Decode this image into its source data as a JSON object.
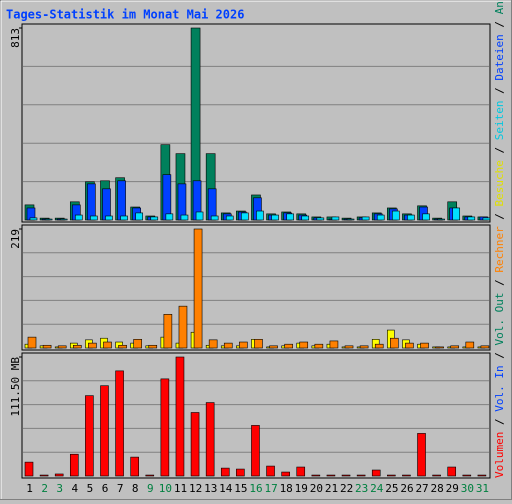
{
  "chart_data": {
    "type": "bar",
    "title": "Tages-Statistik im Monat Mai 2026",
    "categories": [
      "1",
      "2",
      "3",
      "4",
      "5",
      "6",
      "7",
      "8",
      "9",
      "10",
      "11",
      "12",
      "13",
      "14",
      "15",
      "16",
      "17",
      "18",
      "19",
      "20",
      "21",
      "22",
      "23",
      "24",
      "25",
      "26",
      "27",
      "28",
      "29",
      "30",
      "31"
    ],
    "category_colors": [
      "#000000",
      "#008040",
      "#008040",
      "#000000",
      "#000000",
      "#000000",
      "#000000",
      "#000000",
      "#008040",
      "#008040",
      "#000000",
      "#000000",
      "#000000",
      "#000000",
      "#000000",
      "#008040",
      "#008040",
      "#000000",
      "#000000",
      "#000000",
      "#000000",
      "#000000",
      "#008040",
      "#008040",
      "#000000",
      "#000000",
      "#000000",
      "#000000",
      "#000000",
      "#008040",
      "#008040"
    ],
    "legend_separator": " / ",
    "legend": [
      {
        "name": "Volumen",
        "color": "#ff0000"
      },
      {
        "name": "Vol. In",
        "color": "#0040ff"
      },
      {
        "name": "Vol. Out",
        "color": "#00805c"
      },
      {
        "name": "Rechner",
        "color": "#ff8000"
      },
      {
        "name": "Besuche",
        "color": "#e0e000"
      },
      {
        "name": "Seiten",
        "color": "#00c8e0"
      },
      {
        "name": "Dateien",
        "color": "#0040ff"
      },
      {
        "name": "Anfragen",
        "color": "#00805c"
      }
    ],
    "panels": [
      {
        "ylim": [
          0,
          813
        ],
        "yticks": [
          813
        ],
        "series": [
          {
            "color": "#00805c",
            "values": [
              64,
              8,
              8,
              77,
              162,
              166,
              179,
              55,
              17,
              319,
              281,
              813,
              281,
              30,
              38,
              106,
              26,
              34,
              26,
              13,
              13,
              8,
              13,
              30,
              51,
              26,
              60,
              8,
              77,
              17,
              13
            ]
          },
          {
            "color": "#0040ff",
            "values": [
              51,
              4,
              4,
              64,
              153,
              132,
              166,
              51,
              13,
              192,
              153,
              166,
              132,
              26,
              34,
              94,
              21,
              30,
              21,
              9,
              4,
              4,
              9,
              26,
              47,
              21,
              55,
              4,
              51,
              13,
              13
            ]
          },
          {
            "color": "#00e0ff",
            "values": [
              9,
              4,
              4,
              21,
              17,
              17,
              17,
              30,
              13,
              26,
              21,
              34,
              17,
              17,
              30,
              38,
              21,
              26,
              17,
              9,
              13,
              4,
              13,
              21,
              38,
              21,
              26,
              4,
              51,
              13,
              9
            ]
          }
        ]
      },
      {
        "ylim": [
          0,
          219
        ],
        "yticks": [
          219
        ],
        "series": [
          {
            "color": "#ffff00",
            "values": [
              7,
              4,
              2,
              9,
              15,
              18,
              11,
              9,
              4,
              20,
              9,
              29,
              5,
              4,
              4,
              16,
              2,
              4,
              9,
              4,
              7,
              2,
              2,
              16,
              33,
              15,
              7,
              2,
              2,
              2,
              2
            ]
          },
          {
            "color": "#ff8000",
            "values": [
              20,
              5,
              4,
              5,
              9,
              11,
              5,
              16,
              5,
              62,
              77,
              219,
              15,
              9,
              11,
              16,
              4,
              7,
              11,
              7,
              13,
              4,
              4,
              7,
              18,
              9,
              9,
              2,
              4,
              11,
              4
            ]
          }
        ]
      },
      {
        "ylim": [
          0,
          111.5
        ],
        "yticks": [
          {
            "value": 111.5,
            "label": "111.50 MB"
          }
        ],
        "series": [
          {
            "color": "#ff0000",
            "values": [
              13.0,
              0.9,
              1.9,
              20.4,
              75.3,
              84.6,
              98.5,
              17.7,
              0.9,
              91.0,
              111.5,
              59.5,
              68.8,
              7.4,
              6.5,
              47.4,
              9.3,
              3.7,
              8.4,
              0.9,
              0.9,
              0.9,
              0.9,
              5.6,
              0.9,
              0.9,
              39.9,
              0.9,
              8.4,
              0.9,
              0.9
            ]
          }
        ]
      }
    ]
  }
}
